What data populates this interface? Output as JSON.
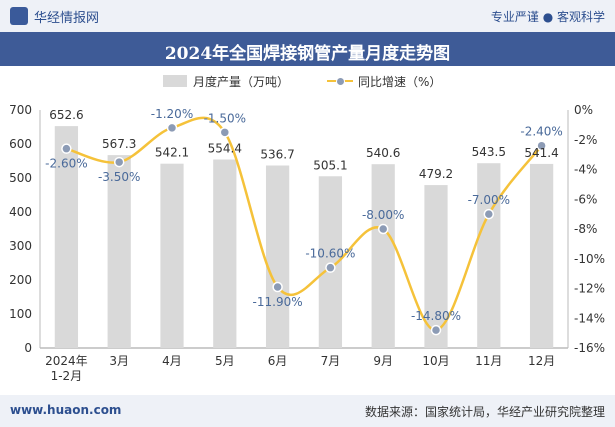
{
  "header": {
    "logo_text": "华经情报网",
    "slogan": "专业严谨 ● 客观科学"
  },
  "footer": {
    "url": "www.huaon.com",
    "source": "数据来源：国家统计局，华经产业研究院整理"
  },
  "colors": {
    "bar": "#d9d9d9",
    "line": "#f5c23a",
    "marker": "#8c9bb5",
    "title_bg": "#3e5b97"
  },
  "chart_data": {
    "type": "bar",
    "title": "2024年全国焊接钢管产量月度走势图",
    "categories": [
      "2024年\n1-2月",
      "3月",
      "4月",
      "5月",
      "6月",
      "7月",
      "9月",
      "10月",
      "11月",
      "12月"
    ],
    "series": [
      {
        "name": "月度产量（万吨）",
        "type": "bar",
        "axis": "left",
        "values": [
          652.6,
          567.3,
          542.1,
          554.4,
          536.7,
          505.1,
          540.6,
          479.2,
          543.5,
          541.4
        ]
      },
      {
        "name": "同比增速（%）",
        "type": "line",
        "axis": "right",
        "values": [
          -2.6,
          -3.5,
          -1.2,
          -1.5,
          -11.9,
          -10.6,
          -8.0,
          -14.8,
          -7.0,
          -2.4
        ]
      }
    ],
    "bar_labels": [
      "652.6",
      "567.3",
      "542.1",
      "554.4",
      "536.7",
      "505.1",
      "540.6",
      "479.2",
      "543.5",
      "541.4"
    ],
    "line_labels": [
      "-2.60%",
      "-3.50%",
      "-1.20%",
      "-1.50%",
      "-11.90%",
      "-10.60%",
      "-8.00%",
      "-14.80%",
      "-7.00%",
      "-2.40%"
    ],
    "ylim_left": [
      0,
      700
    ],
    "yticks_left": [
      "0",
      "100",
      "200",
      "300",
      "400",
      "500",
      "600",
      "700"
    ],
    "ylim_right": [
      -16,
      0
    ],
    "yticks_right": [
      "-16%",
      "-14%",
      "-12%",
      "-10%",
      "-8%",
      "-6%",
      "-4%",
      "-2%",
      "0%"
    ],
    "grid": false,
    "legend_position": "top-center"
  }
}
